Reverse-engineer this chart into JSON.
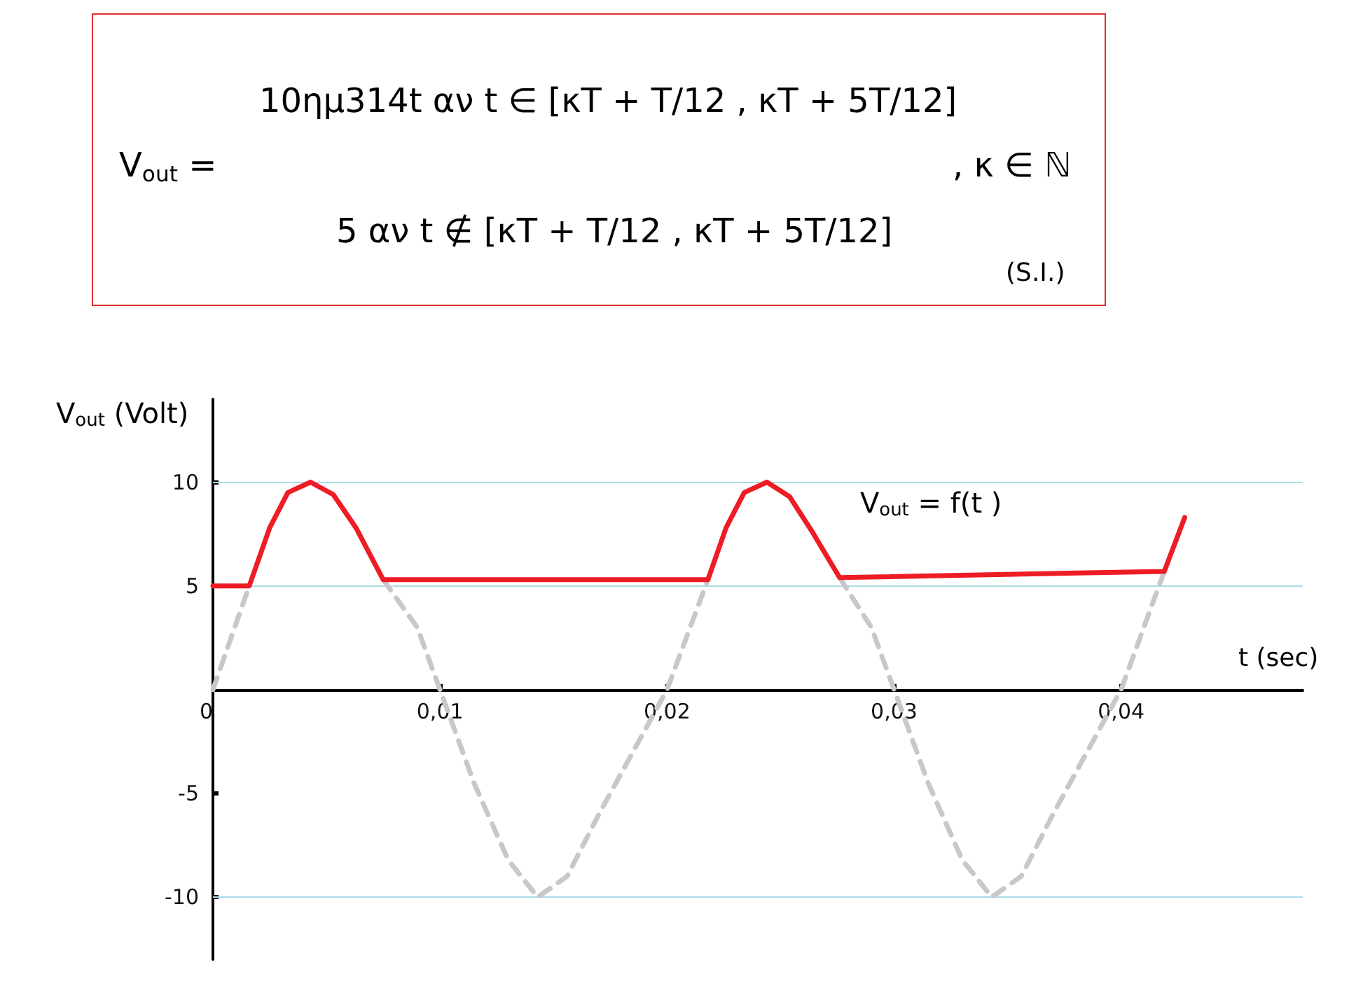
{
  "chart_data": {
    "type": "line",
    "annotations": [
      "V$_{out}$ =",
      "10ημ314t αν t ∈ [κT + T/12 , κT + 5T/12]",
      "5 αν t ∉ [κT + T/12 , κT + 5T/12]",
      ", κ ∈ ℕ",
      "(S.I.)"
    ],
    "xlabel": "t (sec)",
    "ylabel": "V$_{out}$ (Volt)",
    "xlim": [
      0,
      0.048
    ],
    "ylim": [
      -13,
      14
    ],
    "xticks": [
      {
        "value": 0,
        "label": "0"
      },
      {
        "value": 0.01,
        "label": "0,01"
      },
      {
        "value": 0.02,
        "label": "0,02"
      },
      {
        "value": 0.03,
        "label": "0,03"
      },
      {
        "value": 0.04,
        "label": "0,04"
      }
    ],
    "yticks": [
      -10,
      -5,
      5,
      10
    ],
    "grid": false,
    "legend": false,
    "marker": "none",
    "ref_lines": [
      {
        "axis": "y",
        "value": 10,
        "color": "#a8dce8"
      },
      {
        "axis": "y",
        "value": 5,
        "color": "#a8dce8"
      },
      {
        "axis": "y",
        "value": -10,
        "color": "#a8dce8"
      }
    ],
    "series": [
      {
        "color": "#c8c8c8",
        "line_style": "dashed",
        "x": [
          0,
          0.0008,
          0.0016,
          0.004,
          0.0075,
          0.009,
          0.01,
          0.0115,
          0.013,
          0.0143,
          0.0156,
          0.017,
          0.0185,
          0.02,
          0.0218,
          0.024,
          0.0276,
          0.029,
          0.03,
          0.0315,
          0.033,
          0.0343,
          0.0356,
          0.037,
          0.0385,
          0.04,
          0.0419
        ],
        "values": [
          0,
          2.5,
          5,
          null,
          5.3,
          3,
          0,
          -4.5,
          -8.2,
          -10,
          -9,
          -6,
          -3,
          0,
          5.3,
          null,
          5.4,
          3,
          0,
          -4.5,
          -8.2,
          -10,
          -9,
          -6,
          -3,
          0,
          5.7
        ]
      },
      {
        "name": "V$_{out}$ = f(t )",
        "color": "#ee1c25",
        "line_style": "solid",
        "x": [
          0,
          0.0016,
          0.0025,
          0.0033,
          0.0043,
          0.0053,
          0.0063,
          0.0075,
          0.0218,
          0.0226,
          0.0234,
          0.0244,
          0.0254,
          0.0264,
          0.0276,
          0.0419,
          0.0428
        ],
        "values": [
          5,
          5,
          7.8,
          9.5,
          10,
          9.4,
          7.8,
          5.3,
          5.3,
          7.8,
          9.5,
          10,
          9.3,
          7.6,
          5.4,
          5.7,
          8.3
        ]
      }
    ]
  }
}
